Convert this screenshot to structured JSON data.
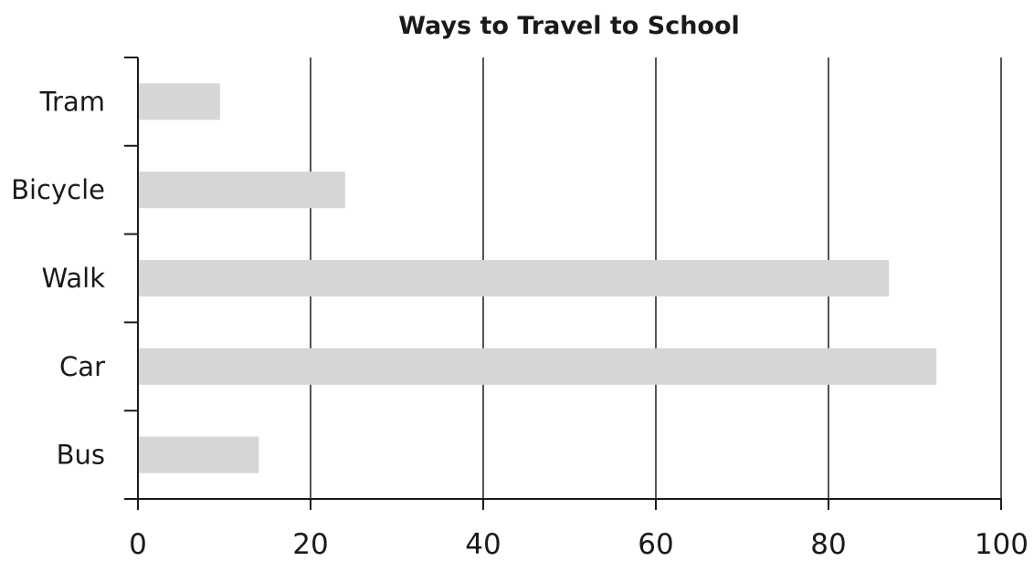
{
  "chart_data": {
    "type": "bar",
    "orientation": "horizontal",
    "title": "Ways to Travel to School",
    "xlabel": "",
    "ylabel": "",
    "categories": [
      "Tram",
      "Bicycle",
      "Walk",
      "Car",
      "Bus"
    ],
    "values": [
      9.5,
      24,
      87,
      92.5,
      14
    ],
    "xlim": [
      0,
      100
    ],
    "xticks": [
      0,
      20,
      40,
      60,
      80,
      100
    ],
    "xtick_labels": [
      "0",
      "20",
      "40",
      "60",
      "80",
      "100"
    ],
    "grid": "vertical",
    "legend": "none",
    "bar_color": "#d6d6d6",
    "grid_color": "#555555",
    "axis_color": "#1a1a1a"
  }
}
